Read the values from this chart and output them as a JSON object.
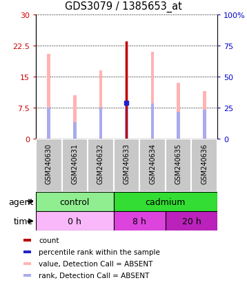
{
  "title": "GDS3079 / 1385653_at",
  "samples": [
    "GSM240630",
    "GSM240631",
    "GSM240632",
    "GSM240633",
    "GSM240634",
    "GSM240635",
    "GSM240636"
  ],
  "pink_bar_heights": [
    20.5,
    10.5,
    16.5,
    23.5,
    21.0,
    13.5,
    11.5
  ],
  "pink_rank_heights": [
    7.5,
    4.0,
    7.5,
    8.5,
    8.5,
    6.5,
    7.0
  ],
  "red_bar_height": 23.5,
  "red_bar_index": 3,
  "blue_dot_value": 8.8,
  "blue_dot_index": 3,
  "ylim_left": [
    0,
    30
  ],
  "ylim_right": [
    0,
    100
  ],
  "yticks_left": [
    0,
    7.5,
    15,
    22.5,
    30
  ],
  "ytick_labels_left": [
    "0",
    "7.5",
    "15",
    "22.5",
    "30"
  ],
  "yticks_right": [
    0,
    25,
    50,
    75,
    100
  ],
  "ytick_labels_right": [
    "0",
    "25",
    "50",
    "75",
    "100%"
  ],
  "agent_control_color": "#90ee90",
  "agent_cadmium_color": "#33dd33",
  "time_0h_color": "#f9b8f9",
  "time_8h_color": "#dd44dd",
  "time_20h_color": "#bb22bb",
  "pink_color": "#ffb3b3",
  "pink_rank_color": "#aaaaee",
  "red_color": "#bb0000",
  "blue_color": "#2222cc",
  "left_axis_color": "#cc0000",
  "right_axis_color": "#0000cc",
  "gray_bg": "#c8c8c8",
  "legend_items": [
    {
      "color": "#bb0000",
      "label": "count"
    },
    {
      "color": "#2222cc",
      "label": "percentile rank within the sample"
    },
    {
      "color": "#ffb3b3",
      "label": "value, Detection Call = ABSENT"
    },
    {
      "color": "#aaaaee",
      "label": "rank, Detection Call = ABSENT"
    }
  ]
}
